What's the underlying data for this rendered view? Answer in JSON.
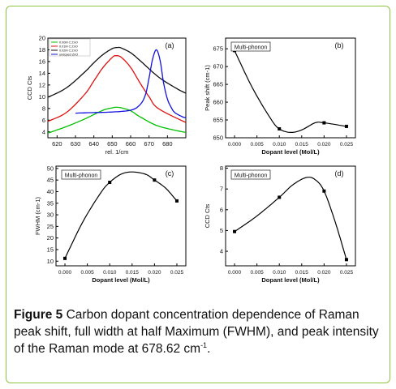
{
  "colors": {
    "frame": "#8cc63e",
    "series": [
      "#00c000",
      "#e01010",
      "#101010",
      "#1010e0"
    ]
  },
  "chart_data": [
    {
      "panel": "(a)",
      "type": "line",
      "xlabel": "rel. 1/cm",
      "ylabel": "CCD Cts",
      "xlim": [
        615,
        690
      ],
      "ylim": [
        3,
        20
      ],
      "xticks": [
        620,
        630,
        640,
        650,
        660,
        670,
        680
      ],
      "yticks": [
        4,
        6,
        8,
        10,
        12,
        14,
        16,
        18,
        20
      ],
      "legend_position": "top-left",
      "series": [
        {
          "name": "0.00M C:ZnO",
          "color": "#00c000",
          "x": [
            615,
            625,
            635,
            645,
            650,
            652,
            655,
            660,
            665,
            675,
            690
          ],
          "y": [
            3.8,
            4.9,
            6.2,
            7.7,
            8.1,
            8.2,
            8.1,
            7.6,
            6.6,
            5.0,
            3.9
          ]
        },
        {
          "name": "0.01M C:ZnO",
          "color": "#e01010",
          "x": [
            615,
            625,
            635,
            640,
            645,
            650,
            652,
            655,
            660,
            665,
            670,
            675,
            690
          ],
          "y": [
            5.8,
            7.3,
            10.4,
            12.7,
            15.0,
            16.7,
            17.0,
            16.7,
            15.0,
            12.4,
            10.0,
            8.0,
            5.6
          ]
        },
        {
          "name": "0.02M C:ZnO",
          "color": "#101010",
          "x": [
            615,
            625,
            635,
            640,
            645,
            650,
            653,
            655,
            660,
            665,
            675,
            685,
            690
          ],
          "y": [
            9.9,
            11.5,
            14.2,
            15.8,
            17.2,
            18.2,
            18.4,
            18.3,
            17.5,
            16.2,
            13.4,
            11.4,
            10.6
          ]
        },
        {
          "name": "undoped ZnO",
          "color": "#1010e0",
          "x": [
            630,
            640,
            650,
            660,
            665,
            668,
            670,
            672,
            674,
            676,
            678,
            680,
            682,
            684,
            688,
            690
          ],
          "y": [
            7.2,
            7.3,
            7.4,
            7.7,
            8.6,
            10.3,
            13.2,
            16.5,
            18.0,
            16.2,
            12.2,
            9.6,
            8.2,
            7.3,
            6.6,
            6.4
          ]
        }
      ]
    },
    {
      "panel": "(b)",
      "type": "line",
      "annotation": "Multi-phonon",
      "xlabel": "Dopant level (Mol/L)",
      "ylabel": "Peak shift (cm-1)",
      "xlim": [
        -0.002,
        0.027
      ],
      "ylim": [
        650,
        678
      ],
      "xticks": [
        "0.000",
        "0.005",
        "0.010",
        "0.015",
        "0.020",
        "0.025"
      ],
      "yticks": [
        650,
        655,
        660,
        665,
        670,
        675
      ],
      "points": {
        "x": [
          0.0,
          0.01,
          0.02,
          0.025
        ],
        "y": [
          674.5,
          652.5,
          654.2,
          653.2
        ]
      },
      "curve": {
        "x": [
          0.0,
          0.004,
          0.008,
          0.01,
          0.0125,
          0.015,
          0.018,
          0.02,
          0.025
        ],
        "y": [
          674.5,
          664.0,
          655.5,
          652.5,
          651.5,
          652.2,
          654.2,
          654.2,
          653.2
        ]
      }
    },
    {
      "panel": "(c)",
      "type": "line",
      "annotation": "Multi-phonon",
      "xlabel": "Dopant level (Mol/L)",
      "ylabel": "FWHM (cm-1)",
      "xlim": [
        -0.002,
        0.027
      ],
      "ylim": [
        8,
        51
      ],
      "xticks": [
        "0.000",
        "0.005",
        "0.010",
        "0.015",
        "0.020",
        "0.025"
      ],
      "yticks": [
        10,
        15,
        20,
        25,
        30,
        35,
        40,
        45,
        50
      ],
      "points": {
        "x": [
          0.0,
          0.01,
          0.02,
          0.025
        ],
        "y": [
          11.2,
          44.0,
          45.0,
          36.0
        ]
      },
      "curve": {
        "x": [
          0.0,
          0.004,
          0.008,
          0.01,
          0.0125,
          0.015,
          0.018,
          0.02,
          0.0225,
          0.025
        ],
        "y": [
          11.2,
          27.0,
          39.5,
          44.0,
          47.5,
          48.5,
          47.5,
          45.0,
          41.5,
          36.0
        ]
      }
    },
    {
      "panel": "(d)",
      "type": "line",
      "annotation": "Multi-phonon",
      "xlabel": "Dopant level (Mol/L)",
      "ylabel": "CCD Cts",
      "xlim": [
        -0.002,
        0.027
      ],
      "ylim": [
        3.3,
        8.1
      ],
      "xticks": [
        "0.000",
        "0.005",
        "0.010",
        "0.015",
        "0.020",
        "0.025"
      ],
      "yticks": [
        4,
        5,
        6,
        7,
        8
      ],
      "points": {
        "x": [
          0.0,
          0.01,
          0.02,
          0.025
        ],
        "y": [
          4.95,
          6.6,
          6.9,
          3.6
        ]
      },
      "curve": {
        "x": [
          0.0,
          0.005,
          0.01,
          0.013,
          0.016,
          0.018,
          0.02,
          0.0225,
          0.025
        ],
        "y": [
          4.95,
          5.7,
          6.6,
          7.2,
          7.55,
          7.45,
          6.9,
          5.4,
          3.6
        ]
      }
    }
  ],
  "caption": {
    "label": "Figure 5",
    "text": " Carbon dopant concentration dependence of Raman peak shift, full width at half Maximum (FWHM), and peak intensity of the Raman mode at 678.62 cm",
    "superscript": "-1",
    "end": "."
  }
}
